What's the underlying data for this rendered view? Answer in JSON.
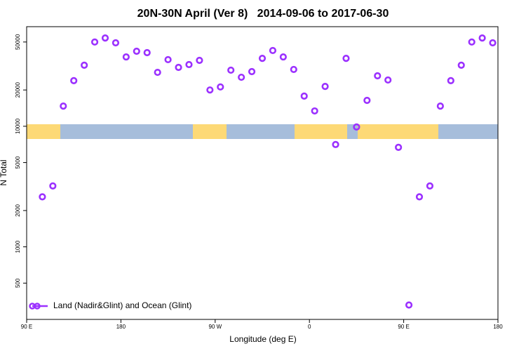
{
  "chart_data": {
    "type": "scatter",
    "title": "20N-30N April (Ver 8)   2014-09-06 to 2017-06-30",
    "x_label": "Longitude (deg E)",
    "y_label": "N Total",
    "xlim": [
      90,
      540
    ],
    "xticks": [
      {
        "value": 90,
        "label": "90 E"
      },
      {
        "value": 180,
        "label": "180"
      },
      {
        "value": 270,
        "label": "90 W"
      },
      {
        "value": 360,
        "label": "0"
      },
      {
        "value": 450,
        "label": "90 E"
      },
      {
        "value": 540,
        "label": "180"
      }
    ],
    "ylim": [
      250,
      67000
    ],
    "y_log": true,
    "yticks": [
      500,
      1000,
      2000,
      5000,
      10000,
      20000,
      50000
    ],
    "legend": "bottom-left",
    "series": [
      {
        "name": "Land (Nadir&Glint) and Ocean (Glint)",
        "color": "#9b30ff",
        "x": [
          105,
          115,
          125,
          135,
          145,
          155,
          165,
          175,
          185,
          195,
          205,
          215,
          225,
          235,
          245,
          255,
          265,
          275,
          285,
          295,
          305,
          315,
          325,
          335,
          345,
          355,
          365,
          375,
          385,
          395,
          405,
          415,
          425,
          435,
          445,
          455,
          465,
          475,
          485,
          495,
          505,
          515,
          525,
          535
        ],
        "values": [
          2600,
          3200,
          14700,
          23900,
          32100,
          50000,
          54000,
          49200,
          37600,
          41900,
          40800,
          28000,
          35700,
          30800,
          32500,
          35200,
          20000,
          21200,
          29200,
          25500,
          28400,
          36600,
          42500,
          37600,
          29600,
          17800,
          13400,
          21400,
          7060,
          36600,
          9870,
          16400,
          26200,
          24200,
          6690,
          329,
          2600,
          3200,
          14700,
          23900,
          32100,
          50000,
          54000,
          49200
        ]
      }
    ]
  }
}
